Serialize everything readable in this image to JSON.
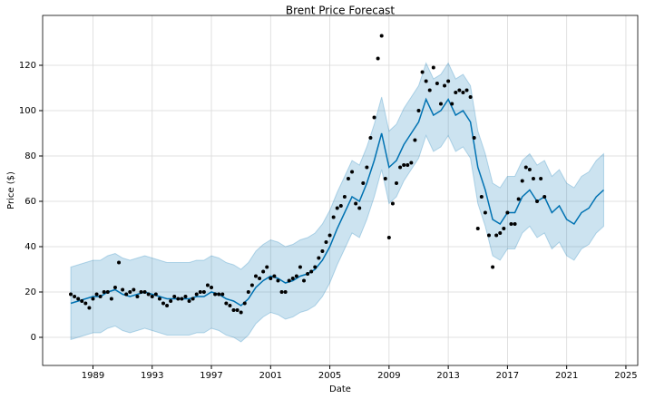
{
  "chart_data": {
    "type": "forecast",
    "title": "Brent Price Forecast",
    "x_label": "Date",
    "y_label": "Price ($)",
    "xlim": [
      1985.6,
      2025.8
    ],
    "ylim": [
      -12.4,
      142
    ],
    "xticks": [
      1989,
      1993,
      1997,
      2001,
      2005,
      2009,
      2013,
      2017,
      2021,
      2025
    ],
    "yticks": [
      0,
      20,
      40,
      60,
      80,
      100,
      120
    ],
    "grid": true,
    "actual": {
      "color": "#000000",
      "x": [
        1987.5,
        1987.75,
        1988,
        1988.25,
        1988.5,
        1988.75,
        1989,
        1989.25,
        1989.5,
        1989.75,
        1990,
        1990.25,
        1990.5,
        1990.75,
        1991,
        1991.25,
        1991.5,
        1991.75,
        1992,
        1992.25,
        1992.5,
        1992.75,
        1993,
        1993.25,
        1993.5,
        1993.75,
        1994,
        1994.25,
        1994.5,
        1994.75,
        1995,
        1995.25,
        1995.5,
        1995.75,
        1996,
        1996.25,
        1996.5,
        1996.75,
        1997,
        1997.25,
        1997.5,
        1997.75,
        1998,
        1998.25,
        1998.5,
        1998.75,
        1999,
        1999.25,
        1999.5,
        1999.75,
        2000,
        2000.25,
        2000.5,
        2000.75,
        2001,
        2001.25,
        2001.5,
        2001.75,
        2002,
        2002.25,
        2002.5,
        2002.75,
        2003,
        2003.25,
        2003.5,
        2003.75,
        2004,
        2004.25,
        2004.5,
        2004.75,
        2005,
        2005.25,
        2005.5,
        2005.75,
        2006,
        2006.25,
        2006.5,
        2006.75,
        2007,
        2007.25,
        2007.5,
        2007.75,
        2008,
        2008.25,
        2008.5,
        2008.75,
        2009,
        2009.25,
        2009.5,
        2009.75,
        2010,
        2010.25,
        2010.5,
        2010.75,
        2011,
        2011.25,
        2011.5,
        2011.75,
        2012,
        2012.25,
        2012.5,
        2012.75,
        2013,
        2013.25,
        2013.5,
        2013.75,
        2014,
        2014.25,
        2014.5,
        2014.75,
        2015,
        2015.25,
        2015.5,
        2015.75,
        2016,
        2016.25,
        2016.5,
        2016.75,
        2017,
        2017.25,
        2017.5,
        2017.75,
        2018,
        2018.25,
        2018.5,
        2018.75,
        2019,
        2019.25,
        2019.5
      ],
      "values": [
        19,
        18,
        17,
        16,
        15,
        13,
        17,
        19,
        18,
        20,
        20,
        17,
        22,
        33,
        21,
        19,
        20,
        21,
        18,
        20,
        20,
        19,
        18,
        19,
        17,
        15,
        14,
        16,
        18,
        17,
        17,
        18,
        16,
        17,
        19,
        20,
        20,
        23,
        22,
        19,
        19,
        19,
        15,
        14,
        12,
        12,
        11,
        15,
        20,
        23,
        27,
        26,
        29,
        31,
        26,
        27,
        25,
        20,
        20,
        25,
        26,
        27,
        31,
        25,
        28,
        29,
        31,
        35,
        38,
        42,
        45,
        53,
        57,
        58,
        62,
        70,
        73,
        59,
        57,
        68,
        75,
        88,
        97,
        123,
        133,
        70,
        44,
        59,
        68,
        75,
        76,
        76,
        77,
        87,
        100,
        117,
        113,
        109,
        119,
        112,
        103,
        111,
        113,
        103,
        108,
        109,
        108,
        109,
        106,
        88,
        48,
        62,
        55,
        45,
        31,
        45,
        46,
        48,
        55,
        50,
        50,
        61,
        69,
        75,
        74,
        70,
        60,
        70,
        62
      ]
    },
    "forecast": {
      "color": "#0072b2",
      "x": [
        1987.5,
        1988,
        1988.5,
        1989,
        1989.5,
        1990,
        1990.5,
        1991,
        1991.5,
        1992,
        1992.5,
        1993,
        1993.5,
        1994,
        1994.5,
        1995,
        1995.5,
        1996,
        1996.5,
        1997,
        1997.5,
        1998,
        1998.5,
        1999,
        1999.5,
        2000,
        2000.5,
        2001,
        2001.5,
        2002,
        2002.5,
        2003,
        2003.5,
        2004,
        2004.5,
        2005,
        2005.5,
        2006,
        2006.5,
        2007,
        2007.5,
        2008,
        2008.5,
        2009,
        2009.5,
        2010,
        2010.5,
        2011,
        2011.5,
        2012,
        2012.5,
        2013,
        2013.5,
        2014,
        2014.5,
        2015,
        2015.5,
        2016,
        2016.5,
        2017,
        2017.5,
        2018,
        2018.5,
        2019,
        2019.5,
        2020,
        2020.5,
        2021,
        2021.5,
        2022,
        2022.5,
        2023,
        2023.5
      ],
      "values": [
        15,
        16,
        17,
        18,
        18,
        20,
        21,
        19,
        18,
        19,
        20,
        19,
        18,
        17,
        17,
        17,
        17,
        18,
        18,
        20,
        19,
        17,
        16,
        14,
        17,
        22,
        25,
        27,
        26,
        24,
        25,
        27,
        28,
        30,
        34,
        40,
        48,
        55,
        62,
        60,
        68,
        78,
        90,
        75,
        78,
        85,
        90,
        95,
        105,
        98,
        100,
        105,
        98,
        100,
        95,
        75,
        65,
        52,
        50,
        55,
        55,
        62,
        65,
        60,
        62,
        55,
        58,
        52,
        50,
        55,
        57,
        62,
        65
      ],
      "lower": [
        -1,
        0,
        1,
        2,
        2,
        4,
        5,
        3,
        2,
        3,
        4,
        3,
        2,
        1,
        1,
        1,
        1,
        2,
        2,
        4,
        3,
        1,
        0,
        -2,
        1,
        6,
        9,
        11,
        10,
        8,
        9,
        11,
        12,
        14,
        18,
        24,
        32,
        39,
        46,
        44,
        52,
        62,
        74,
        59,
        62,
        69,
        74,
        79,
        89,
        82,
        84,
        89,
        82,
        84,
        79,
        59,
        49,
        36,
        34,
        39,
        39,
        46,
        49,
        44,
        46,
        39,
        42,
        36,
        34,
        39,
        41,
        46,
        49
      ],
      "upper": [
        31,
        32,
        33,
        34,
        34,
        36,
        37,
        35,
        34,
        35,
        36,
        35,
        34,
        33,
        33,
        33,
        33,
        34,
        34,
        36,
        35,
        33,
        32,
        30,
        33,
        38,
        41,
        43,
        42,
        40,
        41,
        43,
        44,
        46,
        50,
        56,
        64,
        71,
        78,
        76,
        84,
        94,
        106,
        91,
        94,
        101,
        106,
        111,
        121,
        114,
        116,
        121,
        114,
        116,
        111,
        91,
        81,
        68,
        66,
        71,
        71,
        78,
        81,
        76,
        78,
        71,
        74,
        68,
        66,
        71,
        73,
        78,
        81
      ]
    }
  }
}
